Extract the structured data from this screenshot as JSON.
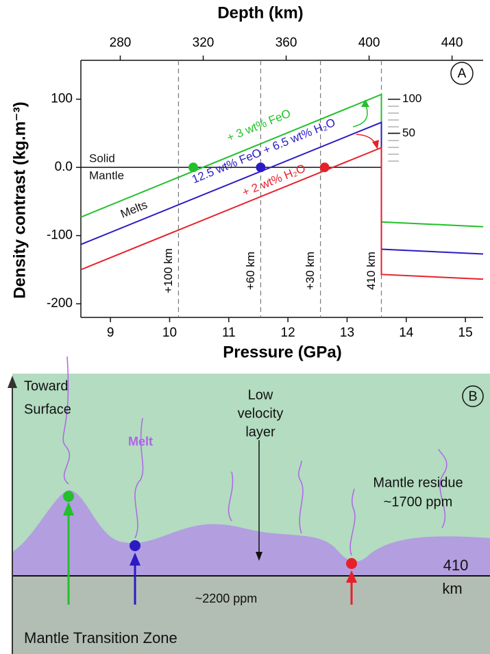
{
  "chart_data": {
    "type": "line",
    "panel_label": "A",
    "xlabel": "Pressure (GPa)",
    "ylabel": "Density contrast (kg.m⁻³)",
    "x2label": "Depth (km)",
    "xlim": [
      8.5,
      15.3
    ],
    "xticks": [
      9,
      10,
      11,
      12,
      13,
      14,
      15
    ],
    "ylim": [
      -220,
      157
    ],
    "yticks": [
      100,
      {
        "value": 0,
        "label": "0.0"
      },
      -100,
      -200
    ],
    "x2lim": [
      261,
      455
    ],
    "x2ticks": [
      280,
      320,
      360,
      400,
      440
    ],
    "x": [
      8.5,
      13.58,
      13.58,
      15.3
    ],
    "series": [
      {
        "name": "+ 3 wt% FeO",
        "color": "#22c02a",
        "values": [
          -73,
          107,
          -80,
          -87
        ]
      },
      {
        "name": "12.5 wt% FeO + 6.5 wt% H₂O",
        "color": "#2b1bc4",
        "values": [
          -113,
          66,
          -120,
          -127
        ]
      },
      {
        "name": "+ 2 wt% H₂O",
        "color": "#e8202a",
        "values": [
          -150,
          29,
          -157,
          -164
        ]
      }
    ],
    "zero_line": 0,
    "points": [
      {
        "x": 10.4,
        "y": 0,
        "color": "#22c02a"
      },
      {
        "x": 11.54,
        "y": 0,
        "color": "#2b1bc4"
      },
      {
        "x": 12.62,
        "y": 0,
        "color": "#e8202a"
      }
    ],
    "vlines": [
      {
        "x": 10.15,
        "label": "+100 km"
      },
      {
        "x": 11.54,
        "label": "+60 km"
      },
      {
        "x": 12.55,
        "label": "+30 km"
      },
      {
        "x": 13.58,
        "label": "410 km"
      }
    ],
    "inset_ticks": [
      100,
      50
    ],
    "annotations": [
      "Solid",
      "Mantle",
      "Melts"
    ]
  },
  "diagram": {
    "panel_label": "B",
    "toward_surface": [
      "Toward",
      "Surface"
    ],
    "melt": "Melt",
    "low_velocity_layer": [
      "Low",
      "velocity",
      "layer"
    ],
    "mantle_residue": [
      "Mantle residue",
      "~1700 ppm"
    ],
    "depth_label": [
      "410",
      "km"
    ],
    "lower_ppm": "~2200 ppm",
    "zone": "Mantle Transition Zone"
  }
}
